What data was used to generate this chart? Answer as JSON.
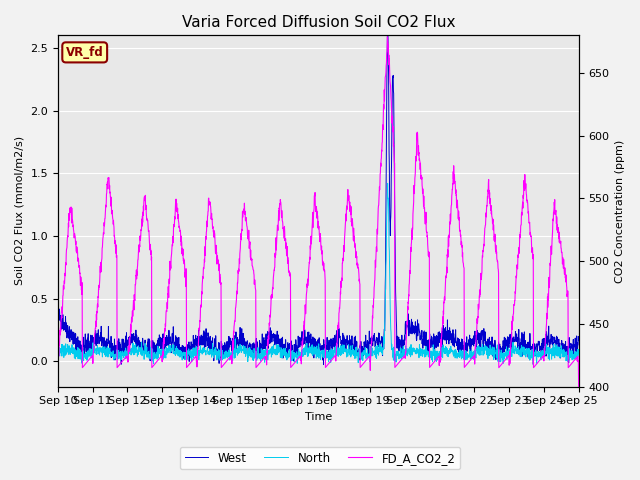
{
  "title": "Varia Forced Diffusion Soil CO2 Flux",
  "xlabel": "Time",
  "ylabel_left": "Soil CO2 Flux (mmol/m2/s)",
  "ylabel_right": "CO2 Concentration (ppm)",
  "ylim_left": [
    -0.2,
    2.6
  ],
  "ylim_right": [
    400,
    680
  ],
  "xlim": [
    0,
    15
  ],
  "xtick_labels": [
    "Sep 10",
    "Sep 11",
    "Sep 12",
    "Sep 13",
    "Sep 14",
    "Sep 15",
    "Sep 16",
    "Sep 17",
    "Sep 18",
    "Sep 19",
    "Sep 20",
    "Sep 21",
    "Sep 22",
    "Sep 23",
    "Sep 24",
    "Sep 25"
  ],
  "legend_entries": [
    "West",
    "North",
    "FD_A_CO2_2"
  ],
  "line_colors": [
    "#0000cc",
    "#00ccee",
    "#ff00ff"
  ],
  "label_text": "VR_fd",
  "label_bg": "#ffffaa",
  "label_border": "#8b0000",
  "plot_bg": "#e8e8e8",
  "fig_bg": "#f2f2f2",
  "grid_color": "#ffffff",
  "title_fontsize": 11,
  "axis_fontsize": 8,
  "tick_fontsize": 8
}
